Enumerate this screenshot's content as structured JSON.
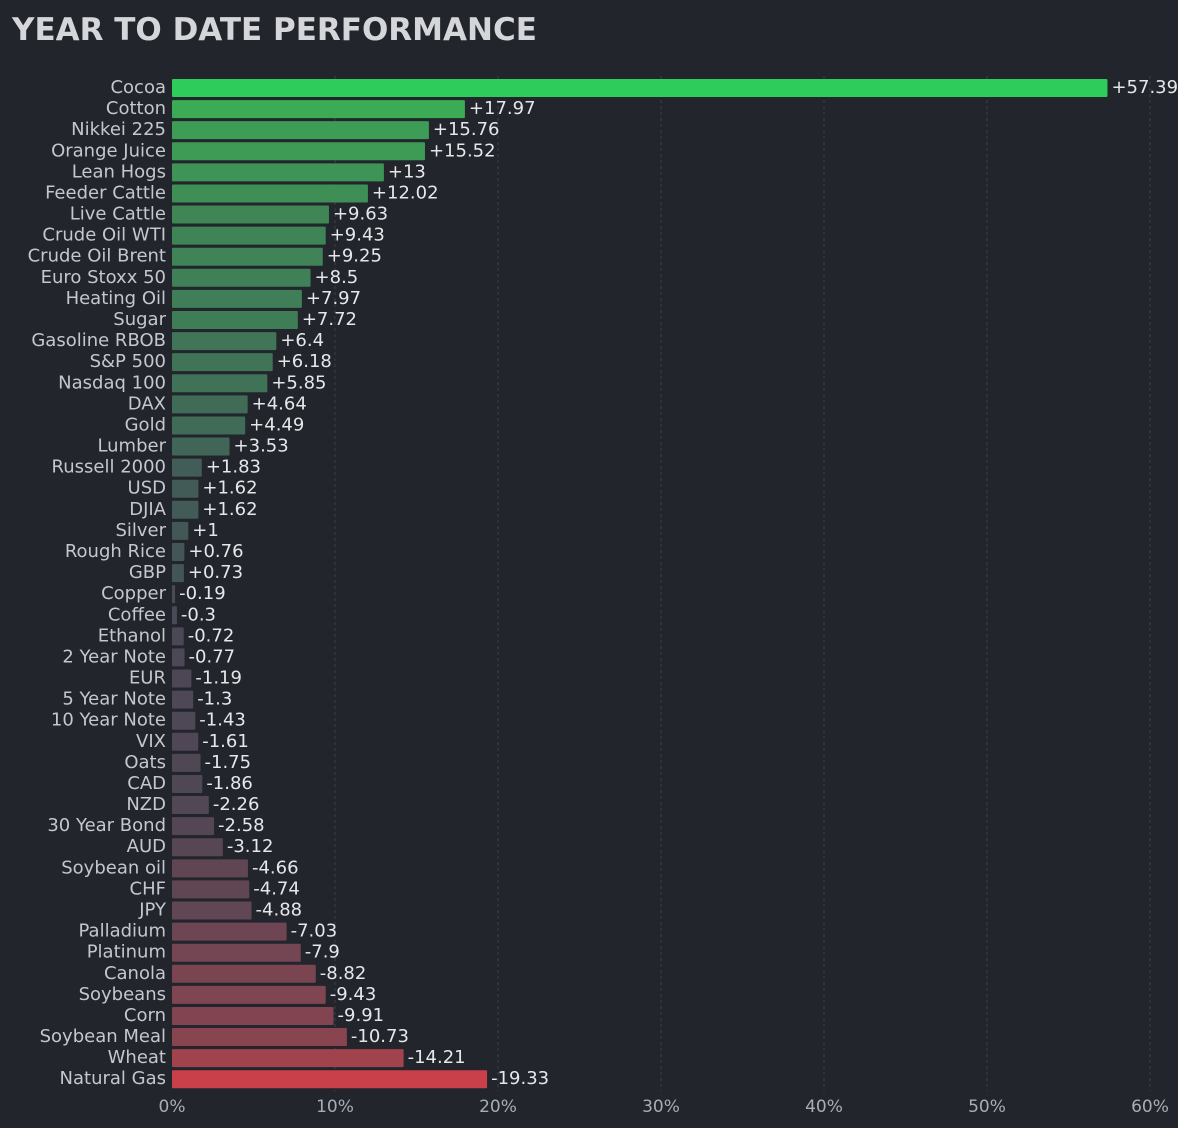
{
  "chart_data": {
    "type": "bar",
    "orientation": "horizontal",
    "title": "YEAR TO DATE PERFORMANCE",
    "categories": [
      "Cocoa",
      "Cotton",
      "Nikkei 225",
      "Orange Juice",
      "Lean Hogs",
      "Feeder Cattle",
      "Live Cattle",
      "Crude Oil WTI",
      "Crude Oil Brent",
      "Euro Stoxx 50",
      "Heating Oil",
      "Sugar",
      "Gasoline RBOB",
      "S&P 500",
      "Nasdaq 100",
      "DAX",
      "Gold",
      "Lumber",
      "Russell 2000",
      "USD",
      "DJIA",
      "Silver",
      "Rough Rice",
      "GBP",
      "Copper",
      "Coffee",
      "Ethanol",
      "2 Year Note",
      "EUR",
      "5 Year Note",
      "10 Year Note",
      "VIX",
      "Oats",
      "CAD",
      "NZD",
      "30 Year Bond",
      "AUD",
      "Soybean oil",
      "CHF",
      "JPY",
      "Palladium",
      "Platinum",
      "Canola",
      "Soybeans",
      "Corn",
      "Soybean Meal",
      "Wheat",
      "Natural Gas"
    ],
    "values": [
      57.39,
      17.97,
      15.76,
      15.52,
      13,
      12.02,
      9.63,
      9.43,
      9.25,
      8.5,
      7.97,
      7.72,
      6.4,
      6.18,
      5.85,
      4.64,
      4.49,
      3.53,
      1.83,
      1.62,
      1.62,
      1,
      0.76,
      0.73,
      -0.19,
      -0.3,
      -0.72,
      -0.77,
      -1.19,
      -1.3,
      -1.43,
      -1.61,
      -1.75,
      -1.86,
      -2.26,
      -2.58,
      -3.12,
      -4.66,
      -4.74,
      -4.88,
      -7.03,
      -7.9,
      -8.82,
      -9.43,
      -9.91,
      -10.73,
      -14.21,
      -19.33
    ],
    "value_labels": [
      "+57.39",
      "+17.97",
      "+15.76",
      "+15.52",
      "+13",
      "+12.02",
      "+9.63",
      "+9.43",
      "+9.25",
      "+8.5",
      "+7.97",
      "+7.72",
      "+6.4",
      "+6.18",
      "+5.85",
      "+4.64",
      "+4.49",
      "+3.53",
      "+1.83",
      "+1.62",
      "+1.62",
      "+1",
      "+0.76",
      "+0.73",
      "-0.19",
      "-0.3",
      "-0.72",
      "-0.77",
      "-1.19",
      "-1.3",
      "-1.43",
      "-1.61",
      "-1.75",
      "-1.86",
      "-2.26",
      "-2.58",
      "-3.12",
      "-4.66",
      "-4.74",
      "-4.88",
      "-7.03",
      "-7.9",
      "-8.82",
      "-9.43",
      "-9.91",
      "-10.73",
      "-14.21",
      "-19.33"
    ],
    "colors": [
      "#2ecc5a",
      "#3bab56",
      "#3d9c55",
      "#3d9b55",
      "#3e9456",
      "#3e8e56",
      "#3f8556",
      "#3f8456",
      "#3f8356",
      "#3f8057",
      "#3f7e57",
      "#3f7d57",
      "#407557",
      "#407457",
      "#407257",
      "#406c57",
      "#406b57",
      "#416657",
      "#425c57",
      "#425b57",
      "#425b57",
      "#435757",
      "#445557",
      "#445557",
      "#4a4b56",
      "#4a4a56",
      "#4b4855",
      "#4c4855",
      "#4d4755",
      "#4e4755",
      "#4e4755",
      "#4f4755",
      "#504755",
      "#504755",
      "#524755",
      "#544655",
      "#574654",
      "#604653",
      "#604653",
      "#614653",
      "#6e4552",
      "#744552",
      "#7a4551",
      "#7f4551",
      "#824451",
      "#88444f",
      "#a0434d",
      "#c9404a"
    ],
    "xlim": [
      0,
      60
    ],
    "xticks": [
      {
        "value": 0,
        "label": "0%"
      },
      {
        "value": 10,
        "label": "10%"
      },
      {
        "value": 20,
        "label": "20%"
      },
      {
        "value": 30,
        "label": "30%"
      },
      {
        "value": 40,
        "label": "40%"
      },
      {
        "value": 50,
        "label": "50%"
      },
      {
        "value": 60,
        "label": "60%"
      }
    ],
    "grid": true
  }
}
